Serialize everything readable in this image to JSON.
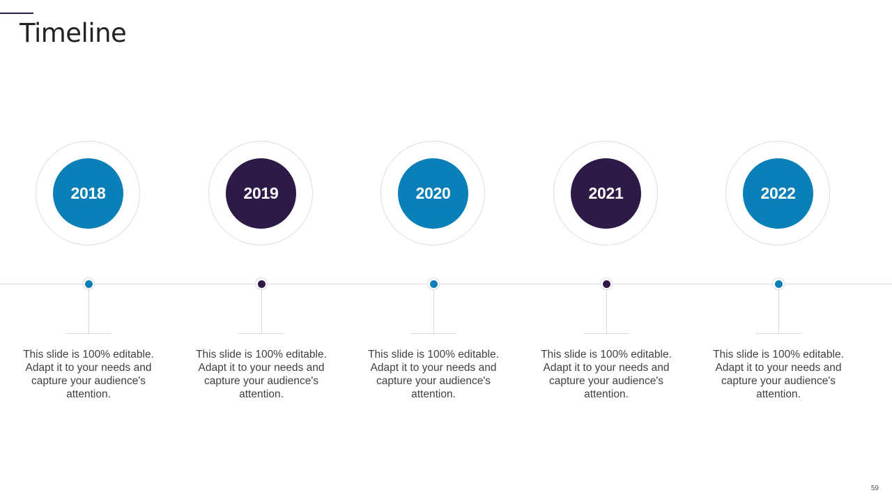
{
  "slide": {
    "title": "Timeline",
    "page_number": "59"
  },
  "colors": {
    "blue": "#0a7fb8",
    "purple": "#2e1a47",
    "accent_rule": "#2e1a47"
  },
  "milestones": [
    {
      "year": "2018",
      "color": "#0a7fb8",
      "description": "This slide is 100% editable. Adapt it to your needs and capture your audience's attention."
    },
    {
      "year": "2019",
      "color": "#2e1a47",
      "description": "This slide is 100% editable. Adapt it to your needs and capture your audience's attention."
    },
    {
      "year": "2020",
      "color": "#0a7fb8",
      "description": "This slide is 100% editable. Adapt it to your needs and capture your audience's attention."
    },
    {
      "year": "2021",
      "color": "#2e1a47",
      "description": "This slide is 100% editable. Adapt it to your needs and capture your audience's attention."
    },
    {
      "year": "2022",
      "color": "#0a7fb8",
      "description": "This slide is 100% editable. Adapt it to your needs and capture your audience's attention."
    }
  ]
}
